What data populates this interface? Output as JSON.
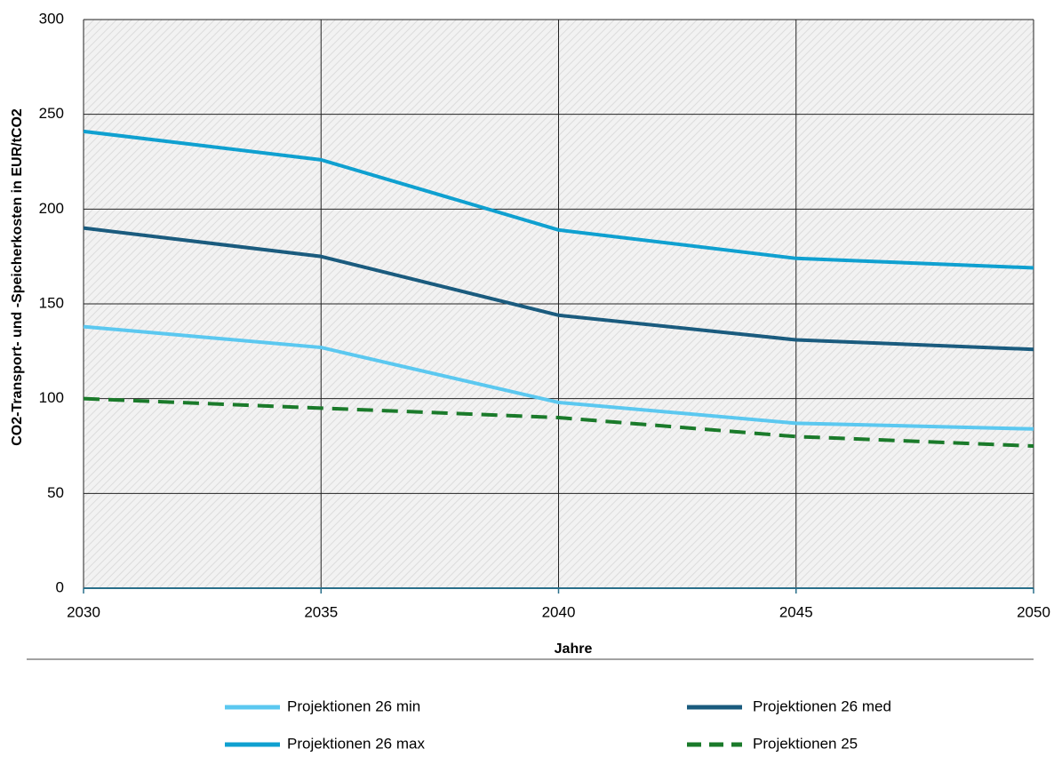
{
  "chart_data": {
    "type": "line",
    "x": [
      2030,
      2035,
      2040,
      2045,
      2050
    ],
    "xlabel": "Jahre",
    "ylabel": "CO2-Transport- und -Speicherkosten in EUR/tCO2",
    "series": [
      {
        "name": "Projektionen 26 min",
        "color": "#5bc8f0",
        "dash": false,
        "values": [
          138,
          127,
          98,
          87,
          84
        ]
      },
      {
        "name": "Projektionen 26 med",
        "color": "#1a5b7e",
        "dash": false,
        "values": [
          190,
          175,
          144,
          131,
          126
        ]
      },
      {
        "name": "Projektionen 26 max",
        "color": "#0fa0d0",
        "dash": false,
        "values": [
          241,
          226,
          189,
          174,
          169
        ]
      },
      {
        "name": "Projektionen 25",
        "color": "#1a7a2a",
        "dash": true,
        "values": [
          100,
          95,
          90,
          80,
          75
        ]
      }
    ],
    "xlim": [
      2030,
      2050
    ],
    "xticks": [
      2030,
      2035,
      2040,
      2045,
      2050
    ],
    "ylim": [
      0,
      300
    ],
    "yticks": [
      0,
      50,
      100,
      150,
      200,
      250,
      300
    ],
    "grid": true,
    "legend": "bottom"
  }
}
